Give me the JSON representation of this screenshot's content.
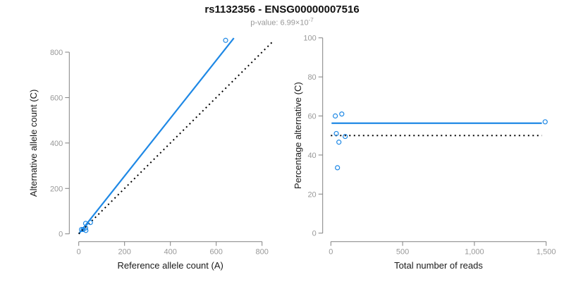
{
  "header": {
    "title": "rs1132356 - ENSG00000007516",
    "pvalue_prefix": "p-value: 6.99×10",
    "pvalue_exponent": "-7"
  },
  "colors": {
    "accent_blue": "#1E88E5",
    "identity_black": "#000000",
    "axis_gray": "#808080",
    "tick_text_gray": "#999999",
    "label_text": "#1a1a1a"
  },
  "chart_data": [
    {
      "type": "scatter",
      "name": "allele-counts-scatter",
      "xlabel": "Reference allele count (A)",
      "ylabel": "Alternative allele count (C)",
      "xlim": [
        0,
        800
      ],
      "ylim": [
        0,
        800
      ],
      "xtick_values": [
        0,
        200,
        400,
        600,
        800
      ],
      "xtick_labels": [
        "0",
        "200",
        "400",
        "600",
        "800"
      ],
      "ytick_values": [
        0,
        200,
        400,
        600,
        800
      ],
      "ytick_labels": [
        "0",
        "200",
        "400",
        "600",
        "800"
      ],
      "points": [
        [
          12,
          19
        ],
        [
          19,
          19
        ],
        [
          31,
          15
        ],
        [
          30,
          26
        ],
        [
          30,
          46
        ],
        [
          51,
          50
        ],
        [
          641,
          852
        ]
      ],
      "lines": [
        {
          "id": "fitted-ratio-line",
          "kind": "through-origin",
          "slope": 1.273,
          "x_start": 0,
          "x_end": 677,
          "color": "accent_blue",
          "style": "solid"
        },
        {
          "id": "identity-line",
          "kind": "through-origin",
          "slope": 1.0,
          "x_start": 0,
          "x_end": 850,
          "color": "identity_black",
          "style": "dotted"
        }
      ],
      "legend_position": "none",
      "grid": false
    },
    {
      "type": "scatter",
      "name": "percentage-scatter",
      "xlabel": "Total number of reads",
      "ylabel": "Percentage alternative (C)",
      "xlim": [
        0,
        1500
      ],
      "ylim": [
        0,
        100
      ],
      "xtick_values": [
        0,
        500,
        1000,
        1500
      ],
      "xtick_labels": [
        "0",
        "500",
        "1,000",
        "1,500"
      ],
      "ytick_values": [
        0,
        20,
        40,
        60,
        80,
        100
      ],
      "ytick_labels": [
        "0",
        "20",
        "40",
        "60",
        "80",
        "100"
      ],
      "points": [
        [
          31,
          60
        ],
        [
          38,
          51
        ],
        [
          46,
          33.5
        ],
        [
          56,
          46.6
        ],
        [
          76,
          61
        ],
        [
          100,
          49.5
        ],
        [
          1493,
          57
        ]
      ],
      "lines": [
        {
          "id": "mean-percentage-line",
          "kind": "horizontal",
          "y": 56.3,
          "x_start": 5,
          "x_end": 1470,
          "color": "accent_blue",
          "style": "solid"
        },
        {
          "id": "null-50pct-line",
          "kind": "horizontal",
          "y": 50,
          "x_start": 0,
          "x_end": 1470,
          "color": "identity_black",
          "style": "dotted"
        }
      ],
      "legend_position": "none",
      "grid": false
    }
  ]
}
